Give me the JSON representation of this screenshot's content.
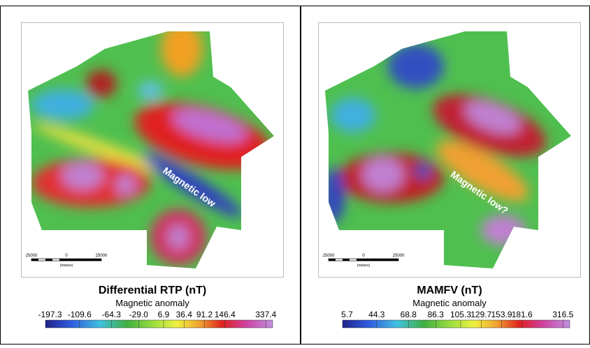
{
  "panels": [
    {
      "title": "Differential RTP (nT)",
      "subtitle": "Magnetic anomaly",
      "colorbar_labels": [
        "-197.3",
        "-109.6",
        "-64.3",
        "-29.0",
        "6.9",
        "36.4",
        "91.2",
        "146.4",
        "337.4"
      ],
      "annotation": "Magnetic low",
      "scale_bar": {
        "labels": [
          "25000",
          "0",
          "25000"
        ],
        "unit": "(meters)"
      }
    },
    {
      "title": "MAMFV (nT)",
      "subtitle": "Magnetic anomaly",
      "colorbar_labels": [
        "5.7",
        "44.3",
        "68.8",
        "86.3",
        "105.3",
        "129.7",
        "153.9",
        "181.6",
        "316.5"
      ],
      "annotation": "Magnetic low?",
      "scale_bar": {
        "labels": [
          "25000",
          "0",
          "25000"
        ],
        "unit": "(meters)"
      }
    }
  ]
}
